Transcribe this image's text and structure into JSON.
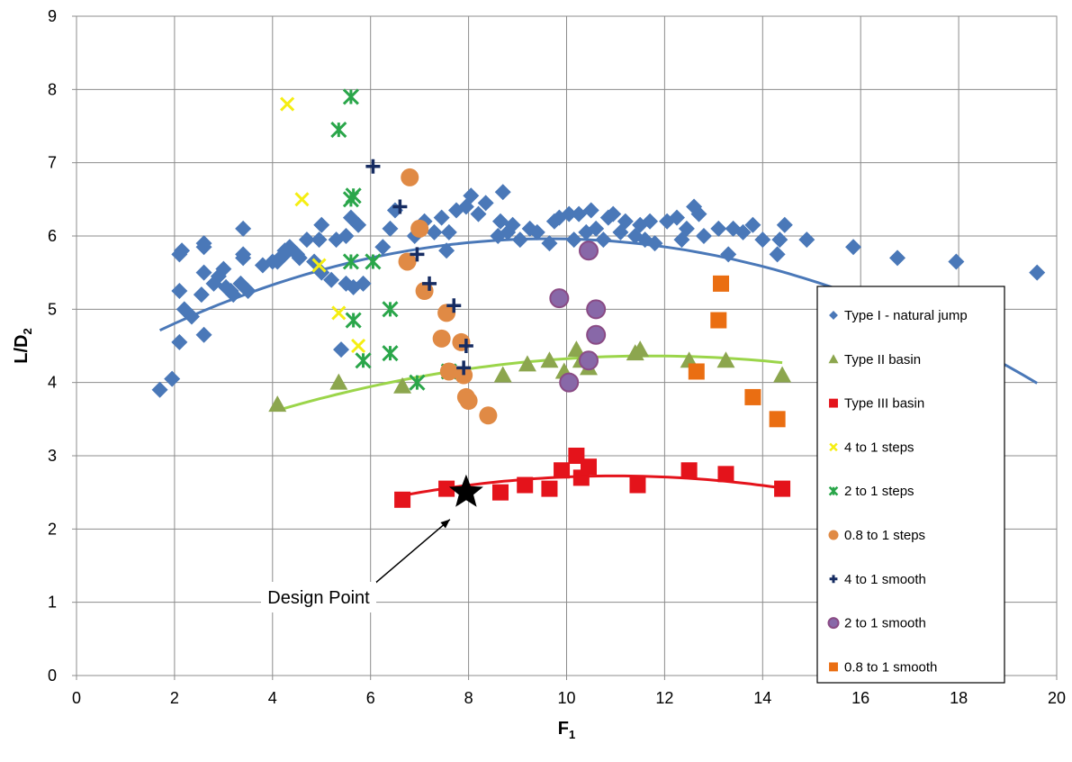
{
  "chart_data": {
    "type": "scatter",
    "title": "",
    "xlabel": "F",
    "xlabel_sub": "1",
    "ylabel": "L/D",
    "ylabel_sub": "2",
    "xlim": [
      0,
      20
    ],
    "ylim": [
      0,
      9
    ],
    "x_ticks": [
      0,
      2,
      4,
      6,
      8,
      10,
      12,
      14,
      16,
      18,
      20
    ],
    "y_ticks": [
      0,
      1,
      2,
      3,
      4,
      5,
      6,
      7,
      8,
      9
    ],
    "grid": true,
    "legend_position": "right",
    "series": [
      {
        "name": "Type I - natural jump",
        "marker": "diamond",
        "color": "#4a78b8",
        "points": [
          [
            1.7,
            3.9
          ],
          [
            1.95,
            4.05
          ],
          [
            2.1,
            4.55
          ],
          [
            2.1,
            5.25
          ],
          [
            2.1,
            5.75
          ],
          [
            2.15,
            5.8
          ],
          [
            2.2,
            5.0
          ],
          [
            2.35,
            4.9
          ],
          [
            2.55,
            5.2
          ],
          [
            2.6,
            4.65
          ],
          [
            2.6,
            5.5
          ],
          [
            2.6,
            5.85
          ],
          [
            2.6,
            5.9
          ],
          [
            2.8,
            5.35
          ],
          [
            2.9,
            5.45
          ],
          [
            3.0,
            5.55
          ],
          [
            3.05,
            5.3
          ],
          [
            3.15,
            5.25
          ],
          [
            3.2,
            5.2
          ],
          [
            3.35,
            5.35
          ],
          [
            3.4,
            5.7
          ],
          [
            3.4,
            5.75
          ],
          [
            3.4,
            6.1
          ],
          [
            3.5,
            5.25
          ],
          [
            3.8,
            5.6
          ],
          [
            4.0,
            5.65
          ],
          [
            4.1,
            5.65
          ],
          [
            4.15,
            5.7
          ],
          [
            4.25,
            5.75
          ],
          [
            4.25,
            5.8
          ],
          [
            4.35,
            5.85
          ],
          [
            4.5,
            5.75
          ],
          [
            4.55,
            5.7
          ],
          [
            4.7,
            5.95
          ],
          [
            4.85,
            5.65
          ],
          [
            4.95,
            5.95
          ],
          [
            5.0,
            6.15
          ],
          [
            5.0,
            5.5
          ],
          [
            5.2,
            5.4
          ],
          [
            5.3,
            5.95
          ],
          [
            5.4,
            4.45
          ],
          [
            5.5,
            5.35
          ],
          [
            5.5,
            6.0
          ],
          [
            5.65,
            5.3
          ],
          [
            5.6,
            6.25
          ],
          [
            5.75,
            6.15
          ],
          [
            5.85,
            5.35
          ],
          [
            6.25,
            5.85
          ],
          [
            6.4,
            6.1
          ],
          [
            6.5,
            6.35
          ],
          [
            6.9,
            6.0
          ],
          [
            7.1,
            6.2
          ],
          [
            7.3,
            6.05
          ],
          [
            7.45,
            6.25
          ],
          [
            7.55,
            5.8
          ],
          [
            7.6,
            6.05
          ],
          [
            7.75,
            6.35
          ],
          [
            7.95,
            6.4
          ],
          [
            8.05,
            6.55
          ],
          [
            8.2,
            6.3
          ],
          [
            8.35,
            6.45
          ],
          [
            8.6,
            6.0
          ],
          [
            8.65,
            6.2
          ],
          [
            8.7,
            6.6
          ],
          [
            8.8,
            6.05
          ],
          [
            8.9,
            6.15
          ],
          [
            9.05,
            5.95
          ],
          [
            9.25,
            6.1
          ],
          [
            9.4,
            6.05
          ],
          [
            9.65,
            5.9
          ],
          [
            9.75,
            6.2
          ],
          [
            9.85,
            6.25
          ],
          [
            10.05,
            6.3
          ],
          [
            10.15,
            5.95
          ],
          [
            10.25,
            6.3
          ],
          [
            10.4,
            6.05
          ],
          [
            10.5,
            6.35
          ],
          [
            10.6,
            6.1
          ],
          [
            10.75,
            5.95
          ],
          [
            10.85,
            6.25
          ],
          [
            10.95,
            6.3
          ],
          [
            11.1,
            6.05
          ],
          [
            11.2,
            6.2
          ],
          [
            11.4,
            6.0
          ],
          [
            11.5,
            6.15
          ],
          [
            11.6,
            5.95
          ],
          [
            11.7,
            6.2
          ],
          [
            11.8,
            5.9
          ],
          [
            12.05,
            6.2
          ],
          [
            12.25,
            6.25
          ],
          [
            12.35,
            5.95
          ],
          [
            12.45,
            6.1
          ],
          [
            12.6,
            6.4
          ],
          [
            12.7,
            6.3
          ],
          [
            12.8,
            6.0
          ],
          [
            13.1,
            6.1
          ],
          [
            13.3,
            5.75
          ],
          [
            13.4,
            6.1
          ],
          [
            13.6,
            6.05
          ],
          [
            13.8,
            6.15
          ],
          [
            14.0,
            5.95
          ],
          [
            14.3,
            5.75
          ],
          [
            14.35,
            5.95
          ],
          [
            14.45,
            6.15
          ],
          [
            14.9,
            5.95
          ],
          [
            15.85,
            5.85
          ],
          [
            16.75,
            5.7
          ],
          [
            17.95,
            5.65
          ],
          [
            19.6,
            5.5
          ]
        ]
      },
      {
        "name": "Type II basin",
        "marker": "triangle",
        "color": "#8ca64e",
        "points": [
          [
            4.1,
            3.7
          ],
          [
            5.35,
            4.0
          ],
          [
            6.65,
            3.95
          ],
          [
            8.7,
            4.1
          ],
          [
            9.2,
            4.25
          ],
          [
            9.65,
            4.3
          ],
          [
            9.95,
            4.15
          ],
          [
            10.2,
            4.45
          ],
          [
            10.3,
            4.3
          ],
          [
            10.45,
            4.2
          ],
          [
            11.4,
            4.4
          ],
          [
            11.5,
            4.45
          ],
          [
            12.5,
            4.3
          ],
          [
            13.25,
            4.3
          ],
          [
            14.4,
            4.1
          ]
        ]
      },
      {
        "name": "Type III basin",
        "marker": "square",
        "color": "#e4131b",
        "points": [
          [
            6.65,
            2.4
          ],
          [
            7.55,
            2.55
          ],
          [
            8.65,
            2.5
          ],
          [
            9.15,
            2.6
          ],
          [
            9.65,
            2.55
          ],
          [
            9.9,
            2.8
          ],
          [
            10.2,
            3.0
          ],
          [
            10.3,
            2.7
          ],
          [
            10.45,
            2.85
          ],
          [
            11.45,
            2.6
          ],
          [
            12.5,
            2.8
          ],
          [
            13.25,
            2.75
          ],
          [
            14.4,
            2.55
          ]
        ]
      },
      {
        "name": "4 to 1 steps",
        "marker": "x",
        "color": "#f5ee12",
        "points": [
          [
            4.3,
            7.8
          ],
          [
            4.6,
            6.5
          ],
          [
            4.95,
            5.6
          ],
          [
            5.35,
            4.95
          ],
          [
            5.75,
            4.5
          ]
        ]
      },
      {
        "name": "2 to 1 steps",
        "marker": "asterisk",
        "color": "#2aa64a",
        "points": [
          [
            5.35,
            7.45
          ],
          [
            5.6,
            7.9
          ],
          [
            5.6,
            6.5
          ],
          [
            5.65,
            6.55
          ],
          [
            5.6,
            5.65
          ],
          [
            5.65,
            4.85
          ],
          [
            5.85,
            4.3
          ],
          [
            6.05,
            5.65
          ],
          [
            6.4,
            5.0
          ],
          [
            6.4,
            4.4
          ],
          [
            6.95,
            4.0
          ],
          [
            7.6,
            4.15
          ]
        ]
      },
      {
        "name": "0.8 to 1 steps",
        "marker": "circle",
        "color": "#e08a45",
        "points": [
          [
            6.8,
            6.8
          ],
          [
            6.75,
            5.65
          ],
          [
            7.0,
            6.1
          ],
          [
            7.1,
            5.25
          ],
          [
            7.45,
            4.6
          ],
          [
            7.55,
            4.95
          ],
          [
            7.6,
            4.15
          ],
          [
            7.85,
            4.55
          ],
          [
            7.9,
            4.1
          ],
          [
            7.95,
            3.8
          ],
          [
            8.0,
            3.75
          ],
          [
            8.4,
            3.55
          ]
        ]
      },
      {
        "name": "4 to 1 smooth",
        "marker": "plus",
        "color": "#162c62",
        "points": [
          [
            6.05,
            6.95
          ],
          [
            6.6,
            6.4
          ],
          [
            6.95,
            5.75
          ],
          [
            7.2,
            5.35
          ],
          [
            7.7,
            5.05
          ],
          [
            7.95,
            4.5
          ],
          [
            7.9,
            4.2
          ]
        ]
      },
      {
        "name": "2 to 1 smooth",
        "marker": "circle",
        "color": "#8868a8",
        "stroke": "#8a4b85",
        "points": [
          [
            9.85,
            5.15
          ],
          [
            10.05,
            4.0
          ],
          [
            10.45,
            5.8
          ],
          [
            10.45,
            4.3
          ],
          [
            10.6,
            5.0
          ],
          [
            10.6,
            4.65
          ]
        ]
      },
      {
        "name": "0.8 to 1 smooth",
        "marker": "square",
        "color": "#ea6e12",
        "points": [
          [
            12.65,
            4.15
          ],
          [
            13.1,
            4.85
          ],
          [
            13.15,
            5.35
          ],
          [
            13.8,
            3.8
          ],
          [
            14.3,
            3.5
          ]
        ]
      }
    ],
    "trendlines": [
      {
        "series": "Type I - natural jump",
        "color": "#4a78b8",
        "coeffs": [
          4.12,
          0.3825,
          -0.01985
        ],
        "x_range": [
          1.7,
          19.6
        ]
      },
      {
        "series": "Type II basin",
        "color": "#9bd54a",
        "coeffs": [
          2.605,
          0.3,
          -0.0128
        ],
        "x_range": [
          4.1,
          14.4
        ]
      },
      {
        "series": "Type III basin",
        "color": "#e4131b",
        "coeffs": [
          1.005,
          0.3132,
          -0.01426
        ],
        "x_range": [
          6.65,
          14.4
        ]
      }
    ],
    "annotations": [
      {
        "text": "Design Point",
        "x": 7.95,
        "y": 2.5,
        "marker": "star",
        "color": "#000000"
      }
    ]
  }
}
